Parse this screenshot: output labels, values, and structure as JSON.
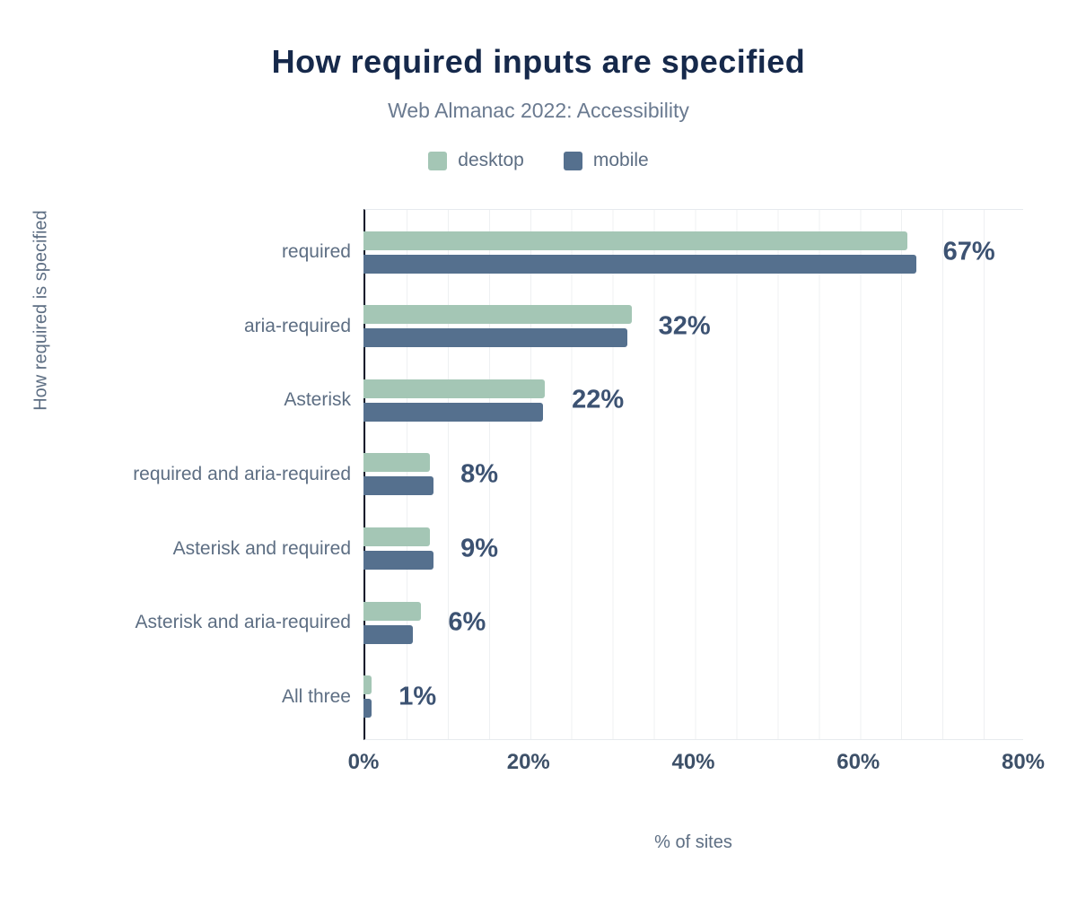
{
  "header": {
    "title": "How required inputs are specified",
    "subtitle": "Web Almanac 2022: Accessibility"
  },
  "legend": [
    {
      "label": "desktop",
      "color": "#a4c6b5"
    },
    {
      "label": "mobile",
      "color": "#55708e"
    }
  ],
  "chart_data": {
    "type": "bar",
    "orientation": "horizontal",
    "title": "How required inputs are specified",
    "subtitle": "Web Almanac 2022: Accessibility",
    "categories": [
      "required",
      "aria-required",
      "Asterisk",
      "required and aria-required",
      "Asterisk and required",
      "Asterisk and aria-required",
      "All three"
    ],
    "series": [
      {
        "name": "desktop",
        "color": "#a4c6b5",
        "values": [
          66,
          32.5,
          22,
          8,
          8,
          7,
          1
        ]
      },
      {
        "name": "mobile",
        "color": "#55708e",
        "values": [
          67,
          32,
          21.8,
          8.5,
          8.5,
          6,
          1
        ]
      }
    ],
    "annotations": [
      "67%",
      "32%",
      "22%",
      "8%",
      "9%",
      "6%",
      "1%"
    ],
    "xlabel": "% of sites",
    "ylabel": "How required is specified",
    "xlim": [
      0,
      80
    ],
    "xticks": [
      "0%",
      "20%",
      "40%",
      "60%",
      "80%"
    ],
    "grid": true,
    "legend_position": "top"
  }
}
